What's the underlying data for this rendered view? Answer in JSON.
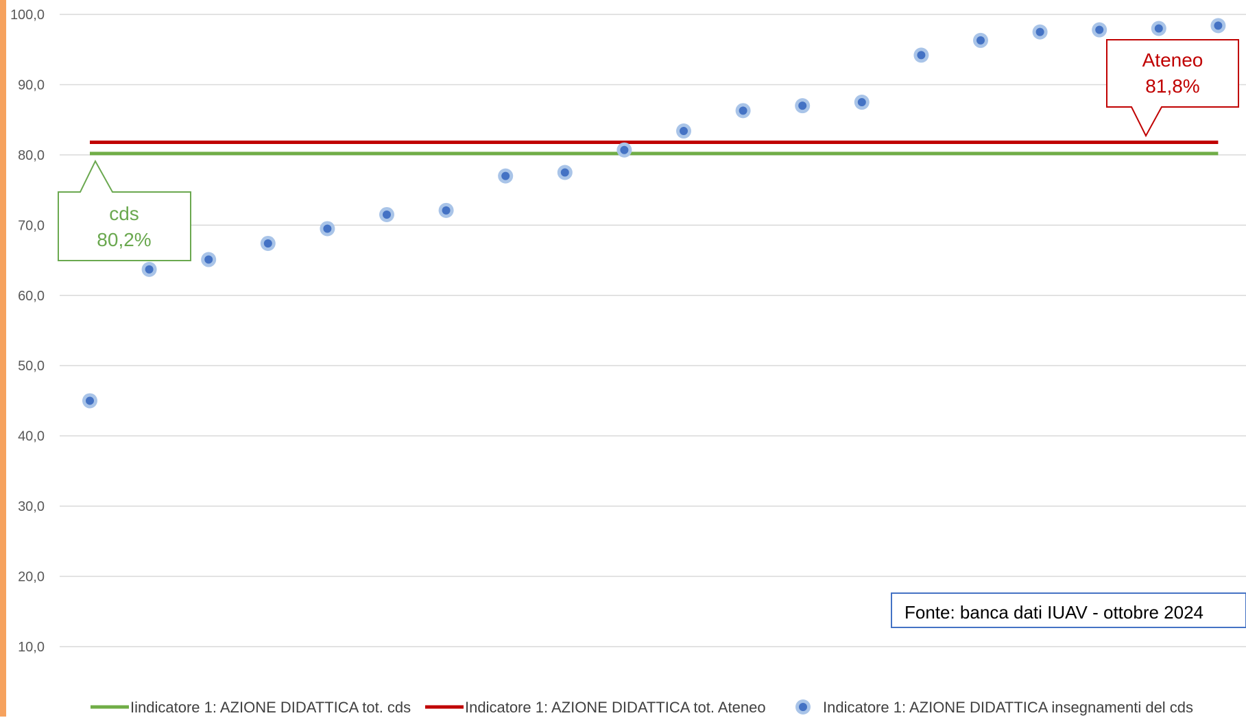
{
  "chart_data": {
    "type": "scatter",
    "title": "",
    "xlabel": "",
    "ylabel": "",
    "ylim": [
      0,
      100
    ],
    "yticks": [
      10,
      20,
      30,
      40,
      50,
      60,
      70,
      80,
      90,
      100
    ],
    "ytick_labels": [
      "10,0",
      "20,0",
      "30,0",
      "40,0",
      "50,0",
      "60,0",
      "70,0",
      "80,0",
      "90,0",
      "100,0"
    ],
    "grid": "horizontal",
    "legend_position": "bottom",
    "series": [
      {
        "name": "Iindicatore 1: AZIONE DIDATTICA tot. cds",
        "kind": "line",
        "color": "#70AD47",
        "values": [
          80.2,
          80.2,
          80.2,
          80.2,
          80.2,
          80.2,
          80.2,
          80.2,
          80.2,
          80.2,
          80.2,
          80.2,
          80.2,
          80.2,
          80.2,
          80.2,
          80.2,
          80.2,
          80.2,
          80.2
        ]
      },
      {
        "name": "Indicatore 1: AZIONE DIDATTICA tot. Ateneo",
        "kind": "line",
        "color": "#C00000",
        "values": [
          81.8,
          81.8,
          81.8,
          81.8,
          81.8,
          81.8,
          81.8,
          81.8,
          81.8,
          81.8,
          81.8,
          81.8,
          81.8,
          81.8,
          81.8,
          81.8,
          81.8,
          81.8,
          81.8,
          81.8
        ]
      },
      {
        "name": "Indicatore 1: AZIONE DIDATTICA insegnamenti del cds",
        "kind": "scatter",
        "color": "#4472C4",
        "values": [
          45.0,
          63.7,
          65.1,
          67.4,
          69.5,
          71.5,
          72.1,
          77.0,
          77.5,
          80.7,
          83.4,
          86.3,
          87.0,
          87.5,
          94.2,
          96.3,
          97.5,
          97.8,
          98.0,
          98.4
        ]
      }
    ],
    "annotations": {
      "cds": {
        "label": "cds",
        "value": "80,2%"
      },
      "ateneo": {
        "label": "Ateneo",
        "value": "81,8%"
      },
      "source": "Fonte: banca dati IUAV - ottobre 2024"
    }
  }
}
